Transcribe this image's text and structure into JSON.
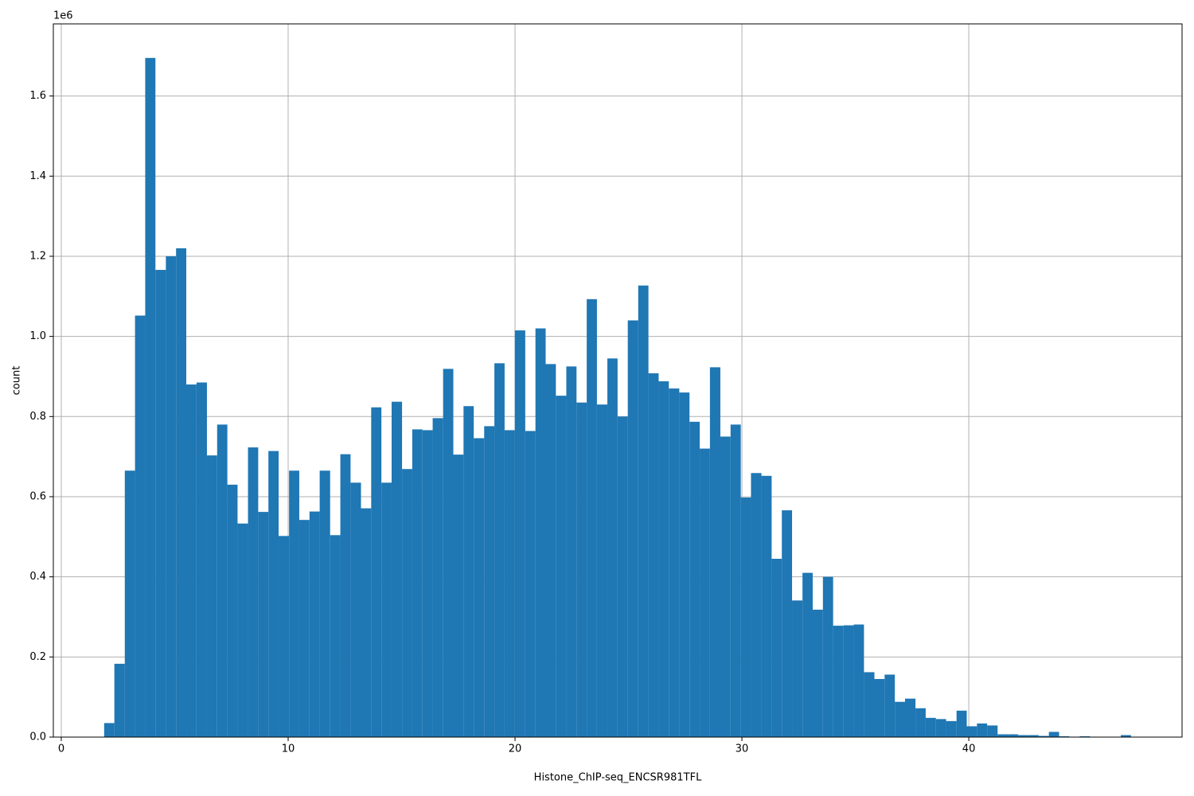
{
  "chart_data": {
    "type": "histogram",
    "xlabel": "Histone_ChIP-seq_ENCSR981TFL",
    "ylabel": "count",
    "y_offset_label": "1e6",
    "color": "#1f77b4",
    "grid": true,
    "bins": [
      1.89,
      2.34,
      2.8,
      3.25,
      3.7,
      4.15,
      4.61,
      5.06,
      5.51,
      5.96,
      6.42,
      6.87,
      7.32,
      7.77,
      8.23,
      8.68,
      9.13,
      9.58,
      10.04,
      10.49,
      10.94,
      11.39,
      11.85,
      12.3,
      12.75,
      13.21,
      13.66,
      14.11,
      14.56,
      15.02,
      15.47,
      15.92,
      16.37,
      16.83,
      17.28,
      17.73,
      18.18,
      18.64,
      19.09,
      19.54,
      19.99,
      20.45,
      20.9,
      21.35,
      21.8,
      22.26,
      22.71,
      23.16,
      23.61,
      24.07,
      24.52,
      24.97,
      25.43,
      25.88,
      26.33,
      26.78,
      27.24,
      27.69,
      28.14,
      28.59,
      29.05,
      29.5,
      29.95,
      30.4,
      30.86,
      31.31,
      31.76,
      32.21,
      32.67,
      33.12,
      33.57,
      34.02,
      34.48,
      34.93,
      35.38,
      35.84,
      36.29,
      36.74,
      37.19,
      37.65,
      38.1,
      38.55,
      39.0,
      39.46,
      39.91,
      40.36,
      40.81,
      41.27,
      41.72,
      42.17,
      42.62,
      43.08,
      43.53,
      43.98,
      44.43,
      44.89,
      45.34,
      45.79,
      46.24,
      46.7,
      47.15
    ],
    "values": [
      35000,
      183000,
      665000,
      1052000,
      1695000,
      1166000,
      1200000,
      1220000,
      880000,
      885000,
      703000,
      780000,
      630000,
      533000,
      723000,
      562000,
      714000,
      502000,
      665000,
      542000,
      563000,
      665000,
      504000,
      706000,
      635000,
      571000,
      823000,
      635000,
      837000,
      669000,
      768000,
      766000,
      796000,
      919000,
      705000,
      826000,
      746000,
      776000,
      933000,
      766000,
      1015000,
      764000,
      1020000,
      931000,
      852000,
      925000,
      835000,
      1093000,
      830000,
      945000,
      800000,
      1040000,
      1127000,
      908000,
      888000,
      870000,
      860000,
      787000,
      720000,
      923000,
      750000,
      780000,
      598000,
      659000,
      652000,
      445000,
      566000,
      341000,
      410000,
      318000,
      400000,
      278000,
      279000,
      281000,
      162000,
      145000,
      156000,
      88000,
      96000,
      72000,
      48000,
      45000,
      40000,
      66000,
      27000,
      34000,
      29000,
      7000,
      7000,
      5000,
      5000,
      3000,
      13000,
      2000,
      1000,
      2000,
      1000,
      500,
      500,
      5000
    ],
    "xlim": [
      -0.35,
      49.4
    ],
    "xticks": [
      0,
      10,
      20,
      30,
      40
    ],
    "ylim": [
      0,
      1780000
    ],
    "yticks": [
      {
        "value": 0,
        "label": "0.0"
      },
      {
        "value": 200000,
        "label": "0.2"
      },
      {
        "value": 400000,
        "label": "0.4"
      },
      {
        "value": 600000,
        "label": "0.6"
      },
      {
        "value": 800000,
        "label": "0.8"
      },
      {
        "value": 1000000,
        "label": "1.0"
      },
      {
        "value": 1200000,
        "label": "1.2"
      },
      {
        "value": 1400000,
        "label": "1.4"
      },
      {
        "value": 1600000,
        "label": "1.6"
      }
    ]
  }
}
